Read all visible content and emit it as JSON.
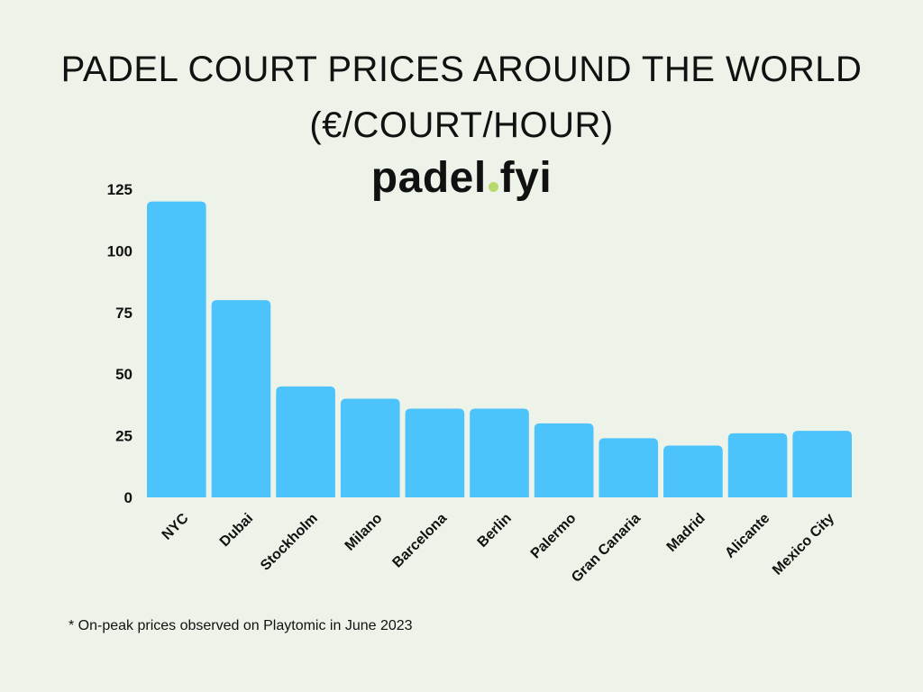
{
  "title": "PADEL COURT PRICES AROUND THE WORLD (€/COURT/HOUR)",
  "brand": {
    "left": "padel",
    "right": "fyi",
    "dot_color": "#b8d96b"
  },
  "footnote": "* On-peak prices observed on Playtomic in June 2023",
  "colors": {
    "bar": "#4cc3fb",
    "background": "#eef3ea",
    "text": "#111111"
  },
  "chart_data": {
    "type": "bar",
    "title": "PADEL COURT PRICES AROUND THE WORLD (€/COURT/HOUR)",
    "categories": [
      "NYC",
      "Dubai",
      "Stockholm",
      "Milano",
      "Barcelona",
      "Berlin",
      "Palermo",
      "Gran Canaria",
      "Madrid",
      "Alicante",
      "Mexico City"
    ],
    "values": [
      120,
      80,
      45,
      40,
      36,
      36,
      30,
      24,
      21,
      26,
      27
    ],
    "yticks": [
      0,
      25,
      50,
      75,
      100,
      125
    ],
    "ylim": [
      0,
      125
    ],
    "xlabel": "",
    "ylabel": "",
    "grid": false,
    "legend": "none"
  }
}
